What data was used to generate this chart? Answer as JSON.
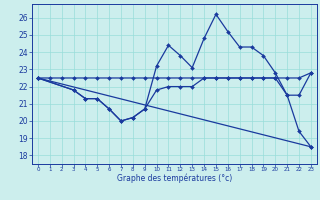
{
  "xlabel": "Graphe des températures (°c)",
  "xlim": [
    -0.5,
    23.5
  ],
  "ylim": [
    17.5,
    26.8
  ],
  "yticks": [
    18,
    19,
    20,
    21,
    22,
    23,
    24,
    25,
    26
  ],
  "xticks": [
    0,
    1,
    2,
    3,
    4,
    5,
    6,
    7,
    8,
    9,
    10,
    11,
    12,
    13,
    14,
    15,
    16,
    17,
    18,
    19,
    20,
    21,
    22,
    23
  ],
  "bg_color": "#cceeed",
  "grid_color": "#99ddda",
  "line_color": "#1a3a9e",
  "line1_x": [
    0,
    1,
    2,
    3,
    4,
    5,
    6,
    7,
    8,
    9,
    10,
    11,
    12,
    13,
    14,
    15,
    16,
    17,
    18,
    19,
    20,
    21,
    22,
    23
  ],
  "line1_y": [
    22.5,
    22.5,
    22.5,
    22.5,
    22.5,
    22.5,
    22.5,
    22.5,
    22.5,
    22.5,
    22.5,
    22.5,
    22.5,
    22.5,
    22.5,
    22.5,
    22.5,
    22.5,
    22.5,
    22.5,
    22.5,
    22.5,
    22.5,
    22.8
  ],
  "line2_x": [
    0,
    3,
    4,
    5,
    6,
    7,
    8,
    9,
    10,
    11,
    12,
    13,
    14,
    15,
    16,
    17,
    18,
    19,
    20,
    21,
    22,
    23
  ],
  "line2_y": [
    22.5,
    21.8,
    21.3,
    21.3,
    20.7,
    20.0,
    20.2,
    20.7,
    23.2,
    24.4,
    23.8,
    23.1,
    24.8,
    26.2,
    25.2,
    24.3,
    24.3,
    23.8,
    22.8,
    21.5,
    19.4,
    18.5
  ],
  "line3_x": [
    0,
    3,
    4,
    5,
    6,
    7,
    8,
    9,
    10,
    11,
    12,
    13,
    14,
    15,
    16,
    17,
    18,
    19,
    20,
    21,
    22,
    23
  ],
  "line3_y": [
    22.5,
    21.8,
    21.3,
    21.3,
    20.7,
    20.0,
    20.2,
    20.7,
    21.8,
    22.0,
    22.0,
    22.0,
    22.5,
    22.5,
    22.5,
    22.5,
    22.5,
    22.5,
    22.5,
    21.5,
    21.5,
    22.8
  ],
  "line4_x": [
    0,
    23
  ],
  "line4_y": [
    22.5,
    18.5
  ]
}
